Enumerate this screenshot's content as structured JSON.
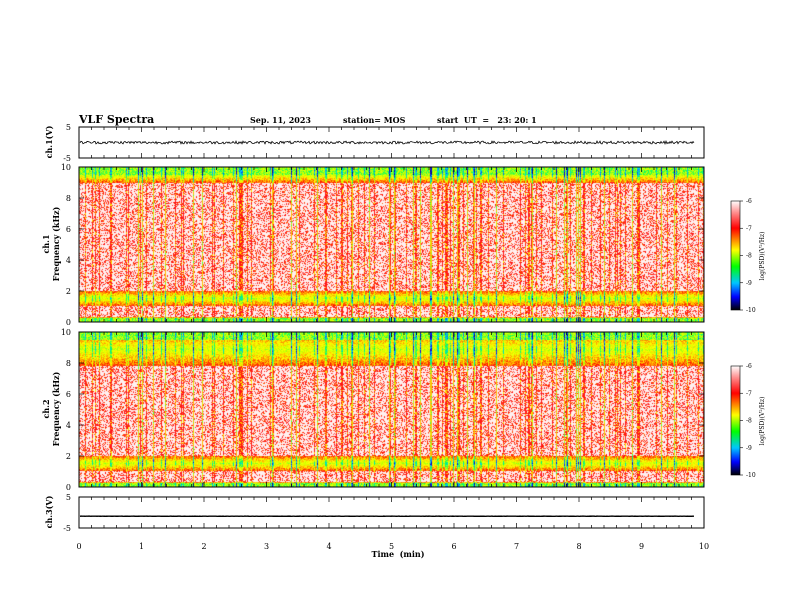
{
  "header": {
    "title": "VLF Spectra",
    "date": "Sep. 11, 2023",
    "station": "station= MOS",
    "start": "start  UT  =   23: 20: 1"
  },
  "chart_data": [
    {
      "name": "ch1-voltage",
      "type": "line",
      "ylabel": "ch.1(V)",
      "ylim": [
        -5,
        5
      ],
      "y_ticks": [
        "5",
        "-5"
      ],
      "xlim": [
        0,
        10
      ],
      "trace_mean": 0,
      "trace_extent_min": 9.85
    },
    {
      "name": "ch1-spectrogram",
      "type": "heatmap",
      "ylabel_line1": "ch.1",
      "ylabel_line2": "Frequency (kHz)",
      "ylim": [
        0,
        10
      ],
      "y_ticks": [
        "0",
        "2",
        "4",
        "6",
        "8",
        "10"
      ],
      "xlim": [
        0,
        10
      ],
      "bands_khz": [
        [
          0,
          0.3
        ],
        [
          1.0,
          2.0
        ],
        [
          9.0,
          10.0
        ]
      ],
      "colorbar": {
        "label": "log(PSD)(V²/Hz)",
        "ticks": [
          "-6",
          "-7",
          "-8",
          "-9",
          "-10"
        ],
        "range": [
          -10,
          -6
        ]
      }
    },
    {
      "name": "ch2-spectrogram",
      "type": "heatmap",
      "ylabel_line1": "ch.2",
      "ylabel_line2": "Frequency (kHz)",
      "ylim": [
        0,
        10
      ],
      "y_ticks": [
        "0",
        "2",
        "4",
        "6",
        "8",
        "10"
      ],
      "xlim": [
        0,
        10
      ],
      "bands_khz": [
        [
          0,
          0.3
        ],
        [
          1.0,
          2.0
        ],
        [
          7.8,
          10.0
        ]
      ],
      "colorbar": {
        "label": "log(PSD)(V²/Hz)",
        "ticks": [
          "-6",
          "-7",
          "-8",
          "-9",
          "-10"
        ],
        "range": [
          -10,
          -6
        ]
      }
    },
    {
      "name": "ch3-voltage",
      "type": "line",
      "ylabel": "ch.3(V)",
      "ylim": [
        -5,
        5
      ],
      "y_ticks": [
        "5",
        "-5"
      ],
      "xlim": [
        0,
        10
      ],
      "trace_mean": -1.2,
      "trace_extent_min": 9.85
    }
  ],
  "x_axis": {
    "label": "Time  (min)",
    "ticks": [
      "0",
      "1",
      "2",
      "3",
      "4",
      "5",
      "6",
      "7",
      "8",
      "9",
      "10"
    ],
    "range": [
      0,
      10
    ]
  },
  "colormap": [
    "#000080",
    "#0000ff",
    "#00c8ff",
    "#00ff64",
    "#c8ff00",
    "#ffff00",
    "#ff8c00",
    "#ff0000",
    "#ffc8c8",
    "#ffffff"
  ]
}
